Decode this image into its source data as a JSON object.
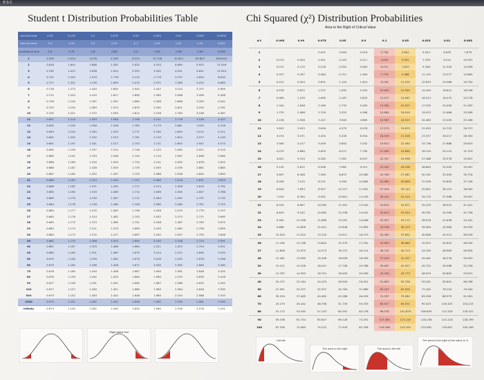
{
  "desk": {
    "tab_text": "esc"
  },
  "t_table": {
    "title": "Student t Distribution Probabilities Table",
    "header_rows": [
      [
        "one-tail area",
        "0.25",
        "0.125",
        "0.1",
        "0.075",
        "0.05",
        "0.025",
        "0.01",
        "0.005",
        "0.0005"
      ],
      [
        "two-tail area",
        "0.5",
        "0.25",
        "0.2",
        "0.15",
        "0.1",
        "0.05",
        "0.02",
        "0.01",
        "0.001"
      ],
      [
        "confidence level",
        "0.5",
        "0.75",
        "0.8",
        "0.85",
        "0.9",
        "0.95",
        "0.98",
        "0.99",
        "0.999"
      ]
    ],
    "rows": [
      [
        "1",
        "1.000",
        "2.414",
        "3.078",
        "4.165",
        "6.314",
        "12.706",
        "31.821",
        "63.657",
        "636.619"
      ],
      [
        "2",
        "0.816",
        "1.604",
        "1.886",
        "2.282",
        "2.920",
        "4.303",
        "6.965",
        "9.925",
        "31.599"
      ],
      [
        "3",
        "0.765",
        "1.423",
        "1.638",
        "1.924",
        "2.353",
        "3.182",
        "4.541",
        "5.841",
        "12.924"
      ],
      [
        "4",
        "0.741",
        "1.344",
        "1.533",
        "1.778",
        "2.132",
        "2.776",
        "3.747",
        "4.604",
        "8.610"
      ],
      [
        "5",
        "0.727",
        "1.301",
        "1.476",
        "1.699",
        "2.015",
        "2.571",
        "3.365",
        "4.032",
        "6.869"
      ],
      [
        "6",
        "0.718",
        "1.273",
        "1.440",
        "1.650",
        "1.943",
        "2.447",
        "3.143",
        "3.707",
        "5.959"
      ],
      [
        "7",
        "0.711",
        "1.254",
        "1.415",
        "1.617",
        "1.895",
        "2.365",
        "2.998",
        "3.499",
        "5.408"
      ],
      [
        "8",
        "0.706",
        "1.240",
        "1.397",
        "1.592",
        "1.860",
        "2.306",
        "2.896",
        "3.355",
        "5.041"
      ],
      [
        "9",
        "0.703",
        "1.230",
        "1.383",
        "1.574",
        "1.833",
        "2.262",
        "2.821",
        "3.250",
        "4.781"
      ],
      [
        "10",
        "0.700",
        "1.221",
        "1.372",
        "1.559",
        "1.812",
        "2.228",
        "2.764",
        "3.169",
        "4.587"
      ],
      [
        "11",
        "0.697",
        "1.214",
        "1.363",
        "1.548",
        "1.796",
        "2.201",
        "2.718",
        "3.106",
        "4.437"
      ],
      [
        "12",
        "0.695",
        "1.209",
        "1.356",
        "1.538",
        "1.782",
        "2.179",
        "2.681",
        "3.055",
        "4.318"
      ],
      [
        "13",
        "0.694",
        "1.204",
        "1.350",
        "1.530",
        "1.771",
        "2.160",
        "2.650",
        "3.012",
        "4.221"
      ],
      [
        "14",
        "0.692",
        "1.200",
        "1.345",
        "1.523",
        "1.761",
        "2.145",
        "2.624",
        "2.977",
        "4.140"
      ],
      [
        "15",
        "0.691",
        "1.197",
        "1.341",
        "1.517",
        "1.753",
        "2.131",
        "2.602",
        "2.947",
        "4.073"
      ],
      [
        "16",
        "0.690",
        "1.194",
        "1.337",
        "1.512",
        "1.746",
        "2.120",
        "2.583",
        "2.921",
        "4.015"
      ],
      [
        "17",
        "0.689",
        "1.191",
        "1.333",
        "1.508",
        "1.740",
        "2.110",
        "2.567",
        "2.898",
        "3.965"
      ],
      [
        "18",
        "0.688",
        "1.189",
        "1.330",
        "1.504",
        "1.734",
        "2.101",
        "2.552",
        "2.878",
        "3.922"
      ],
      [
        "19",
        "0.688",
        "1.187",
        "1.328",
        "1.500",
        "1.729",
        "2.093",
        "2.539",
        "2.861",
        "3.883"
      ],
      [
        "20",
        "0.687",
        "1.185",
        "1.325",
        "1.497",
        "1.725",
        "2.086",
        "2.528",
        "2.845",
        "3.850"
      ],
      [
        "21",
        "0.686",
        "1.183",
        "1.323",
        "1.494",
        "1.721",
        "2.080",
        "2.518",
        "2.831",
        "3.819"
      ],
      [
        "22",
        "0.686",
        "1.182",
        "1.321",
        "1.492",
        "1.717",
        "2.074",
        "2.508",
        "2.819",
        "3.792"
      ],
      [
        "23",
        "0.685",
        "1.180",
        "1.319",
        "1.489",
        "1.714",
        "2.069",
        "2.500",
        "2.807",
        "3.768"
      ],
      [
        "24",
        "0.685",
        "1.179",
        "1.318",
        "1.487",
        "1.711",
        "2.064",
        "2.492",
        "2.797",
        "3.745"
      ],
      [
        "25",
        "0.684",
        "1.178",
        "1.316",
        "1.485",
        "1.708",
        "2.060",
        "2.485",
        "2.787",
        "3.725"
      ],
      [
        "26",
        "0.684",
        "1.177",
        "1.315",
        "1.483",
        "1.706",
        "2.056",
        "2.479",
        "2.779",
        "3.707"
      ],
      [
        "27",
        "0.684",
        "1.176",
        "1.314",
        "1.482",
        "1.703",
        "2.052",
        "2.473",
        "2.771",
        "3.690"
      ],
      [
        "28",
        "0.683",
        "1.175",
        "1.313",
        "1.480",
        "1.701",
        "2.048",
        "2.467",
        "2.763",
        "3.674"
      ],
      [
        "29",
        "0.683",
        "1.174",
        "1.311",
        "1.479",
        "1.699",
        "2.045",
        "2.462",
        "2.756",
        "3.659"
      ],
      [
        "30",
        "0.683",
        "1.173",
        "1.310",
        "1.477",
        "1.697",
        "2.042",
        "2.457",
        "2.750",
        "3.646"
      ],
      [
        "35",
        "0.682",
        "1.170",
        "1.306",
        "1.472",
        "1.690",
        "2.030",
        "2.438",
        "2.724",
        "3.591"
      ],
      [
        "40",
        "0.681",
        "1.167",
        "1.303",
        "1.468",
        "1.684",
        "2.021",
        "2.423",
        "2.704",
        "3.551"
      ],
      [
        "45",
        "0.680",
        "1.165",
        "1.301",
        "1.465",
        "1.679",
        "2.014",
        "2.412",
        "2.690",
        "3.520"
      ],
      [
        "50",
        "0.679",
        "1.164",
        "1.299",
        "1.462",
        "1.676",
        "2.009",
        "2.403",
        "2.678",
        "3.496"
      ],
      [
        "60",
        "0.679",
        "1.162",
        "1.296",
        "1.458",
        "1.671",
        "2.000",
        "2.390",
        "2.660",
        "3.460"
      ],
      [
        "70",
        "0.678",
        "1.160",
        "1.294",
        "1.456",
        "1.667",
        "1.994",
        "2.381",
        "2.648",
        "3.435"
      ],
      [
        "80",
        "0.678",
        "1.159",
        "1.292",
        "1.453",
        "1.664",
        "1.990",
        "2.374",
        "2.639",
        "3.416"
      ],
      [
        "90",
        "0.677",
        "1.158",
        "1.291",
        "1.452",
        "1.662",
        "1.987",
        "2.368",
        "2.632",
        "3.402"
      ],
      [
        "100",
        "0.677",
        "1.157",
        "1.290",
        "1.451",
        "1.660",
        "1.984",
        "2.364",
        "2.626",
        "3.390"
      ],
      [
        "500",
        "0.675",
        "1.152",
        "1.283",
        "1.442",
        "1.648",
        "1.965",
        "2.334",
        "2.586",
        "3.310"
      ],
      [
        "1000",
        "0.675",
        "1.151",
        "1.282",
        "1.441",
        "1.646",
        "1.962",
        "2.330",
        "2.581",
        "3.300"
      ],
      [
        "infinity",
        "0.674",
        "1.150",
        "1.282",
        "1.440",
        "1.645",
        "1.960",
        "2.326",
        "2.576",
        "3.291"
      ]
    ],
    "panels": [
      {
        "label": ""
      },
      {
        "label": "Right-tailed test"
      },
      {
        "label": ""
      }
    ]
  },
  "chi_table": {
    "title": "Chi Squared (χ²) Distribution Probabilities",
    "area_label": "Area to the Right of Critical Value",
    "header": [
      "d.f.",
      "0.995",
      "0.99",
      "0.975",
      "0.95",
      "0.9",
      "0.1",
      "0.05",
      "0.025",
      "0.01",
      "0.005"
    ],
    "rows": [
      [
        "1",
        "",
        "",
        "0.001",
        "0.004",
        "0.016",
        "2.706",
        "3.841",
        "5.024",
        "6.635",
        "7.879"
      ],
      [
        "2",
        "0.010",
        "0.020",
        "0.051",
        "0.103",
        "0.211",
        "4.605",
        "5.991",
        "7.378",
        "9.210",
        "10.597"
      ],
      [
        "3",
        "0.072",
        "0.115",
        "0.216",
        "0.352",
        "0.584",
        "6.251",
        "7.815",
        "9.348",
        "11.345",
        "12.838"
      ],
      [
        "4",
        "0.207",
        "0.297",
        "0.484",
        "0.711",
        "1.064",
        "7.779",
        "9.488",
        "11.143",
        "13.277",
        "14.860"
      ],
      [
        "5",
        "0.412",
        "0.554",
        "0.831",
        "1.145",
        "1.610",
        "9.236",
        "11.070",
        "12.833",
        "15.086",
        "16.750"
      ],
      [
        "6",
        "0.676",
        "0.872",
        "1.237",
        "1.635",
        "2.204",
        "10.645",
        "12.592",
        "14.449",
        "16.812",
        "18.548"
      ],
      [
        "7",
        "0.989",
        "1.239",
        "1.690",
        "2.167",
        "2.833",
        "12.017",
        "14.067",
        "16.013",
        "18.475",
        "20.278"
      ],
      [
        "8",
        "1.344",
        "1.646",
        "2.180",
        "2.733",
        "3.490",
        "13.362",
        "15.507",
        "17.535",
        "20.090",
        "21.955"
      ],
      [
        "9",
        "1.735",
        "2.088",
        "2.700",
        "3.325",
        "4.168",
        "14.684",
        "16.919",
        "19.023",
        "21.666",
        "23.589"
      ],
      [
        "10",
        "2.156",
        "2.558",
        "3.247",
        "3.940",
        "4.865",
        "15.987",
        "18.307",
        "20.483",
        "23.209",
        "25.188"
      ],
      [
        "11",
        "2.603",
        "3.053",
        "3.816",
        "4.575",
        "5.578",
        "17.275",
        "19.675",
        "21.920",
        "24.725",
        "26.757"
      ],
      [
        "12",
        "3.074",
        "3.571",
        "4.404",
        "5.226",
        "6.304",
        "18.549",
        "21.026",
        "23.337",
        "26.217",
        "28.300"
      ],
      [
        "13",
        "3.565",
        "4.107",
        "5.009",
        "5.892",
        "7.042",
        "19.812",
        "22.362",
        "24.736",
        "27.688",
        "29.819"
      ],
      [
        "14",
        "4.075",
        "4.660",
        "5.629",
        "6.571",
        "7.790",
        "21.064",
        "23.685",
        "26.119",
        "29.141",
        "31.319"
      ],
      [
        "15",
        "4.601",
        "5.229",
        "6.262",
        "7.261",
        "8.547",
        "22.307",
        "24.996",
        "27.488",
        "30.578",
        "32.801"
      ],
      [
        "16",
        "5.142",
        "5.812",
        "6.908",
        "7.962",
        "9.312",
        "23.542",
        "26.296",
        "28.845",
        "32.000",
        "34.267"
      ],
      [
        "17",
        "5.697",
        "6.408",
        "7.564",
        "8.672",
        "10.085",
        "24.769",
        "27.587",
        "30.191",
        "33.409",
        "35.718"
      ],
      [
        "18",
        "6.265",
        "7.015",
        "8.231",
        "9.390",
        "10.865",
        "25.989",
        "28.869",
        "31.526",
        "34.805",
        "37.156"
      ],
      [
        "19",
        "6.844",
        "7.633",
        "8.907",
        "10.117",
        "11.651",
        "27.204",
        "30.144",
        "32.852",
        "36.191",
        "38.582"
      ],
      [
        "20",
        "7.434",
        "8.260",
        "9.591",
        "10.851",
        "12.443",
        "28.412",
        "31.410",
        "34.170",
        "37.566",
        "39.997"
      ],
      [
        "21",
        "8.034",
        "8.897",
        "10.283",
        "11.591",
        "13.240",
        "29.615",
        "32.671",
        "35.479",
        "38.932",
        "41.401"
      ],
      [
        "22",
        "8.643",
        "9.542",
        "10.982",
        "12.338",
        "14.041",
        "30.813",
        "33.924",
        "36.781",
        "40.289",
        "42.796"
      ],
      [
        "23",
        "9.260",
        "10.196",
        "11.689",
        "13.091",
        "14.848",
        "32.007",
        "35.172",
        "38.076",
        "41.638",
        "44.181"
      ],
      [
        "24",
        "9.886",
        "10.856",
        "12.401",
        "13.848",
        "15.659",
        "33.196",
        "36.415",
        "39.364",
        "42.980",
        "45.559"
      ],
      [
        "25",
        "10.520",
        "11.524",
        "13.120",
        "14.611",
        "16.473",
        "34.382",
        "37.652",
        "40.646",
        "44.314",
        "46.928"
      ],
      [
        "26",
        "11.160",
        "12.198",
        "13.844",
        "15.379",
        "17.292",
        "35.563",
        "38.885",
        "41.923",
        "45.642",
        "48.290"
      ],
      [
        "27",
        "11.808",
        "12.879",
        "14.573",
        "16.151",
        "18.114",
        "36.741",
        "40.113",
        "43.195",
        "46.963",
        "49.645"
      ],
      [
        "28",
        "12.461",
        "13.565",
        "15.308",
        "16.928",
        "18.939",
        "37.916",
        "41.337",
        "44.461",
        "48.278",
        "50.993"
      ],
      [
        "29",
        "13.121",
        "14.256",
        "16.047",
        "17.708",
        "19.768",
        "39.087",
        "42.557",
        "45.722",
        "49.588",
        "52.336"
      ],
      [
        "30",
        "13.787",
        "14.953",
        "16.791",
        "18.493",
        "20.599",
        "40.256",
        "43.773",
        "46.979",
        "50.892",
        "53.672"
      ],
      [
        "40",
        "20.707",
        "22.164",
        "24.433",
        "26.509",
        "29.051",
        "51.805",
        "55.758",
        "59.342",
        "63.691",
        "66.766"
      ],
      [
        "50",
        "27.991",
        "29.707",
        "32.357",
        "34.764",
        "37.689",
        "63.167",
        "67.505",
        "71.420",
        "76.154",
        "79.490"
      ],
      [
        "60",
        "35.534",
        "37.485",
        "40.482",
        "43.188",
        "46.459",
        "74.397",
        "79.082",
        "83.298",
        "88.379",
        "91.952"
      ],
      [
        "70",
        "43.275",
        "45.442",
        "48.758",
        "51.739",
        "55.329",
        "85.527",
        "90.531",
        "95.023",
        "100.425",
        "104.215"
      ],
      [
        "80",
        "51.172",
        "53.540",
        "57.153",
        "60.391",
        "64.278",
        "96.578",
        "101.879",
        "106.629",
        "112.329",
        "116.321"
      ],
      [
        "90",
        "59.196",
        "61.754",
        "65.647",
        "69.126",
        "73.291",
        "107.565",
        "113.145",
        "118.136",
        "124.116",
        "128.299"
      ],
      [
        "100",
        "67.328",
        "70.065",
        "74.222",
        "77.929",
        "82.358",
        "118.498",
        "124.342",
        "129.561",
        "135.807",
        "140.169"
      ]
    ],
    "panels": [
      {
        "label": "Left tail"
      },
      {
        "label": "The area to the right"
      },
      {
        "label": "The area to the left"
      },
      {
        "label": "The area to the right of the value is ½"
      }
    ]
  },
  "colors": {
    "t_header": "#4d6aa9",
    "t_band": "#d9e1f0",
    "chi_red": "#f2c7c0",
    "chi_gold": "#f7dd9c",
    "curve_fill": "#c9332b"
  }
}
